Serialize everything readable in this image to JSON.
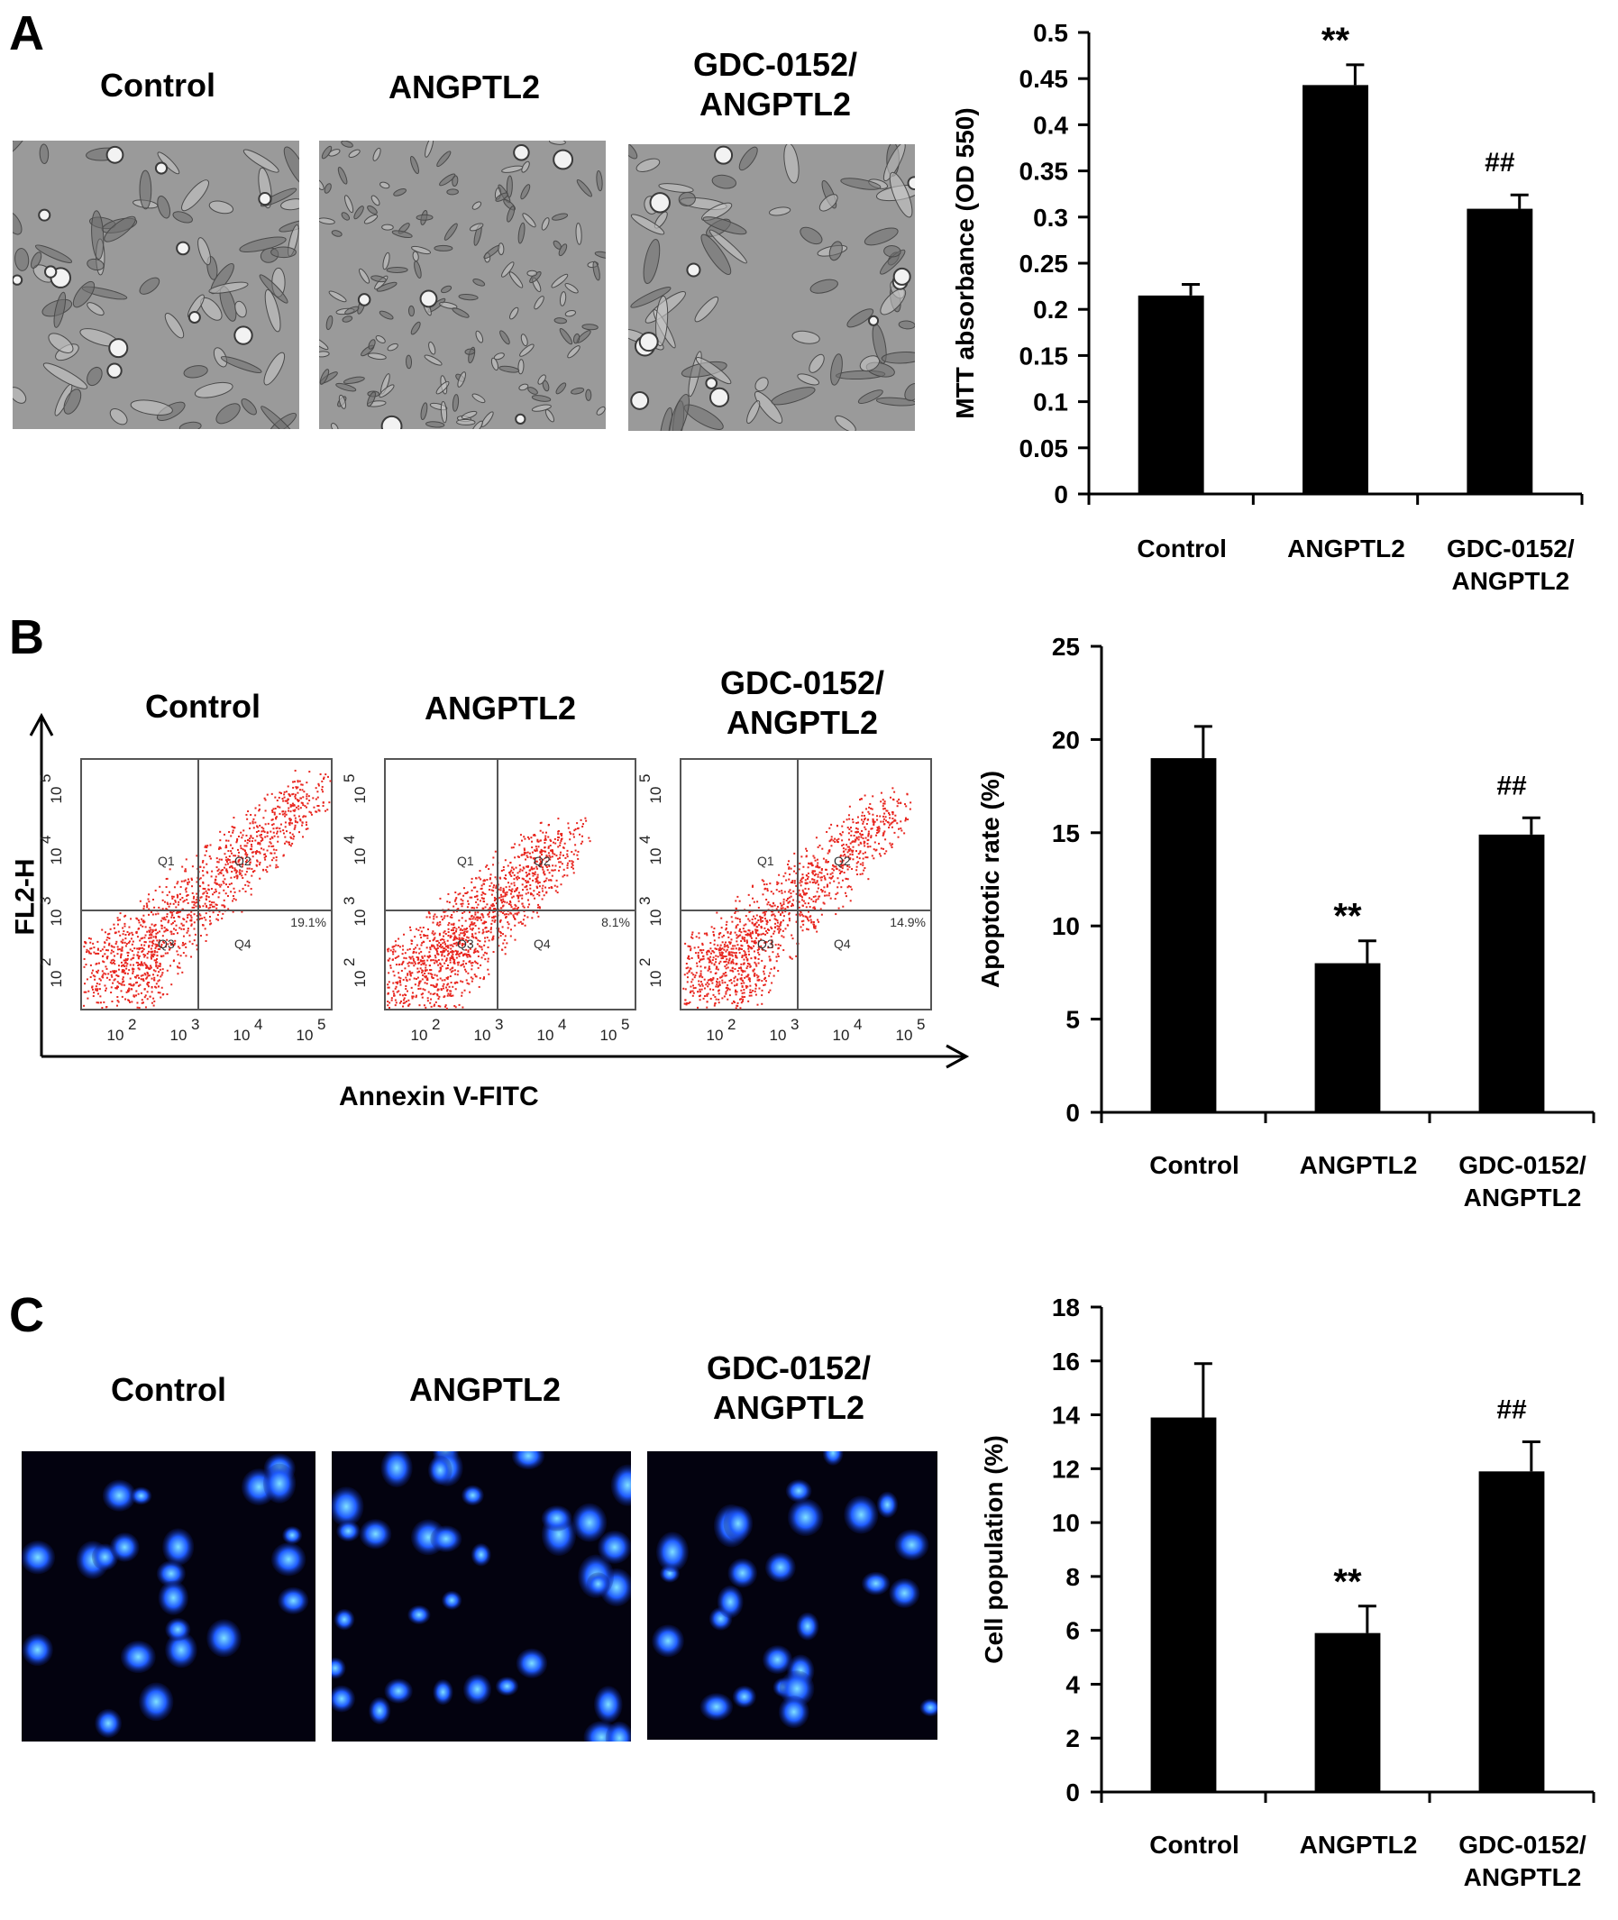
{
  "panels": {
    "A": {
      "letter": "A",
      "conditions": [
        "Control",
        "ANGPTL2",
        "GDC-0152/\nANGPTL2"
      ]
    },
    "B": {
      "letter": "B",
      "conditions": [
        "Control",
        "ANGPTL2",
        "GDC-0152/\nANGPTL2"
      ],
      "flow": {
        "y_axis_title": "FL2-H",
        "x_axis_title": "Annexin V-FITC",
        "quadrants": [
          "Q1",
          "Q2",
          "Q3",
          "Q4"
        ],
        "percentages": [
          "19.1%",
          "8.1%",
          "14.9%"
        ],
        "tick_labels": [
          "10",
          "10",
          "10",
          "10"
        ],
        "tick_exponents": [
          "2",
          "3",
          "4",
          "5"
        ]
      }
    },
    "C": {
      "letter": "C",
      "conditions": [
        "Control",
        "ANGPTL2",
        "GDC-0152/\nANGPTL2"
      ]
    }
  },
  "chart_data": [
    {
      "type": "bar",
      "categories": [
        "Control",
        "ANGPTL2",
        "GDC-0152/\nANGPTL2"
      ],
      "values": [
        0.215,
        0.443,
        0.309
      ],
      "errors": [
        0.012,
        0.022,
        0.015
      ],
      "annotations": [
        "",
        "**",
        "##"
      ],
      "ylabel": "MTT absorbance (OD 550)",
      "ylim": [
        0,
        0.5
      ],
      "yticks": [
        "0",
        "0.05",
        "0.1",
        "0.15",
        "0.2",
        "0.25",
        "0.3",
        "0.35",
        "0.4",
        "0.45",
        "0.5"
      ],
      "ytick_values": [
        0,
        0.05,
        0.1,
        0.15,
        0.2,
        0.25,
        0.3,
        0.35,
        0.4,
        0.45,
        0.5
      ],
      "bar_color": "#000000"
    },
    {
      "type": "bar",
      "categories": [
        "Control",
        "ANGPTL2",
        "GDC-0152/\nANGPTL2"
      ],
      "values": [
        19.0,
        8.0,
        14.9
      ],
      "errors": [
        1.7,
        1.2,
        0.9
      ],
      "annotations": [
        "",
        "**",
        "##"
      ],
      "ylabel": "Apoptotic rate (%)",
      "ylim": [
        0,
        25
      ],
      "yticks": [
        "0",
        "5",
        "10",
        "15",
        "20",
        "25"
      ],
      "ytick_values": [
        0,
        5,
        10,
        15,
        20,
        25
      ],
      "bar_color": "#000000"
    },
    {
      "type": "bar",
      "categories": [
        "Control",
        "ANGPTL2",
        "GDC-0152/\nANGPTL2"
      ],
      "values": [
        13.9,
        5.9,
        11.9
      ],
      "errors": [
        2.0,
        1.0,
        1.1
      ],
      "annotations": [
        "",
        "**",
        "##"
      ],
      "ylabel": "Cell population (%)",
      "ylim": [
        0,
        18
      ],
      "yticks": [
        "0",
        "2",
        "4",
        "6",
        "8",
        "10",
        "12",
        "14",
        "16",
        "18"
      ],
      "ytick_values": [
        0,
        2,
        4,
        6,
        8,
        10,
        12,
        14,
        16,
        18
      ],
      "bar_color": "#000000"
    }
  ],
  "colors": {
    "flow_dots": "#e8261f",
    "nuclei": "#1f5cff",
    "phase_bg": "#9a9a9a"
  }
}
